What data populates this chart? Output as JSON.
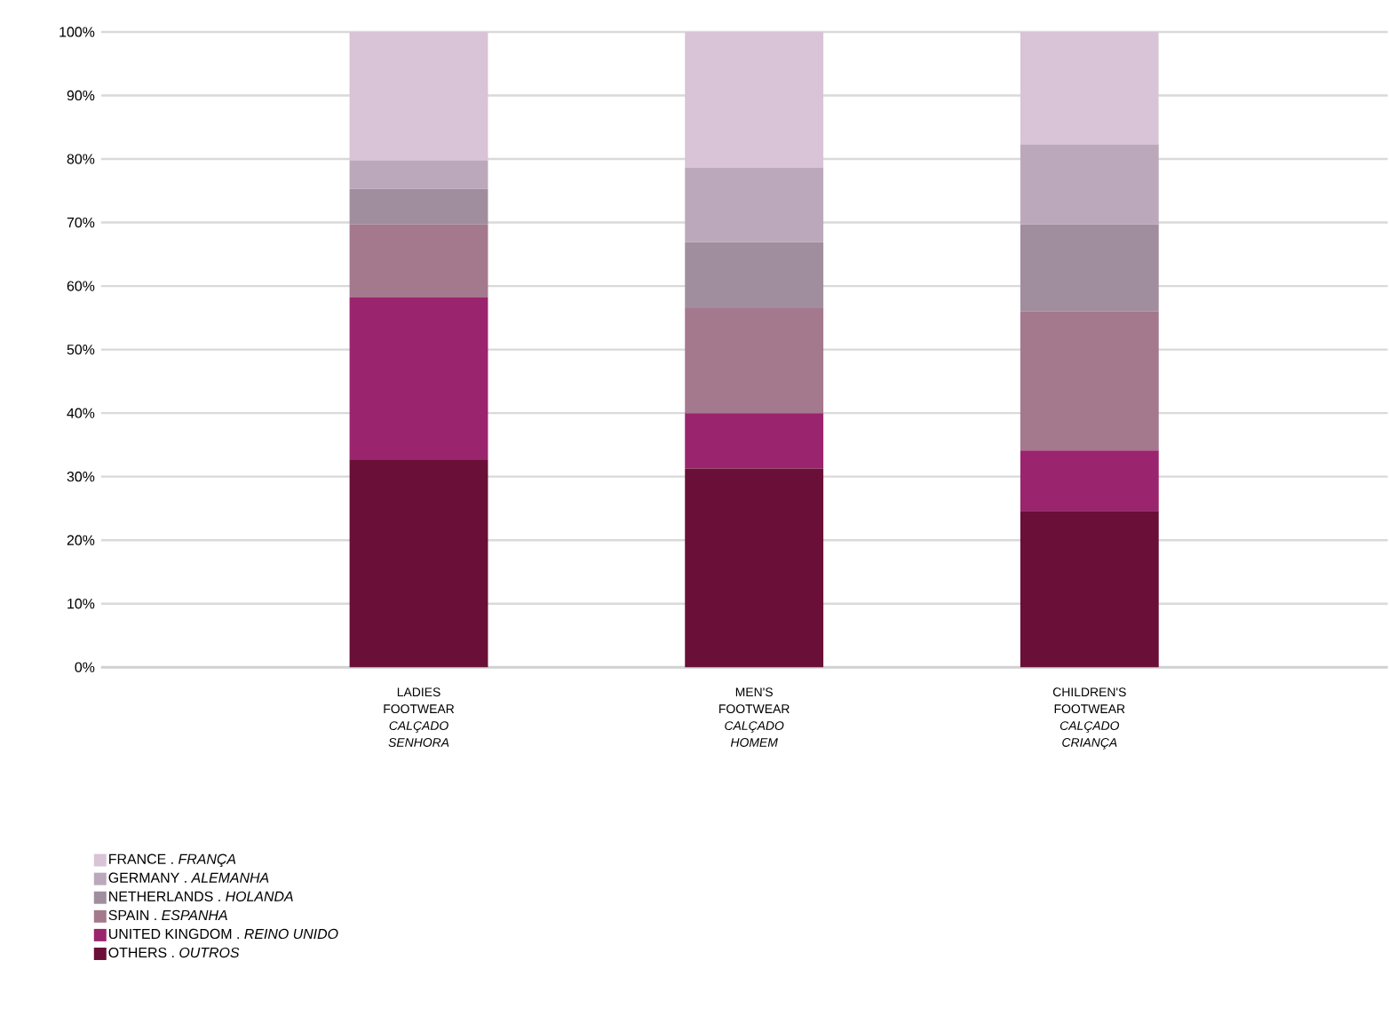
{
  "chart_data": {
    "type": "bar",
    "stacked": true,
    "categories": [
      "LADIES FOOTWEAR *CALÇADO SENHORA*",
      "MEN'S FOOTWEAR *CALÇADO HOMEM*",
      "CHILDREN'S FOOTWEAR *CALÇADO CRIANÇA*"
    ],
    "series": [
      {
        "name": "OTHERS . *OUTROS*",
        "color": "#6a0f37",
        "values": [
          32.6,
          31.3,
          24.6
        ]
      },
      {
        "name": "UNITED KINGDOM . *REINO UNIDO*",
        "color": "#9b246f",
        "values": [
          25.6,
          8.7,
          9.5
        ]
      },
      {
        "name": "SPAIN . *ESPANHA*",
        "color": "#a4788d",
        "values": [
          11.5,
          16.5,
          21.9
        ]
      },
      {
        "name": "NETHERLANDS . *HOLANDA*",
        "color": "#a08e9f",
        "values": [
          5.6,
          10.4,
          13.7
        ]
      },
      {
        "name": "GERMANY . *ALEMANHA*",
        "color": "#bba9bb",
        "values": [
          4.5,
          11.7,
          12.6
        ]
      },
      {
        "name": "FRANCE . *FRANÇA*",
        "color": "#d9c3d6",
        "values": [
          20.2,
          21.4,
          17.7
        ]
      }
    ],
    "ylim": [
      0,
      100
    ],
    "yticks": [
      {
        "value": 0,
        "label": "0%"
      },
      {
        "value": 10,
        "label": "10%"
      },
      {
        "value": 20,
        "label": "20%"
      },
      {
        "value": 30,
        "label": "30%"
      },
      {
        "value": 40,
        "label": "40%"
      },
      {
        "value": 50,
        "label": "50%"
      },
      {
        "value": 60,
        "label": "60%"
      },
      {
        "value": 70,
        "label": "70%"
      },
      {
        "value": 80,
        "label": "80%"
      },
      {
        "value": 90,
        "label": "90%"
      },
      {
        "value": 100,
        "label": "100%"
      }
    ],
    "grid": "y",
    "legend": "bottom left"
  }
}
